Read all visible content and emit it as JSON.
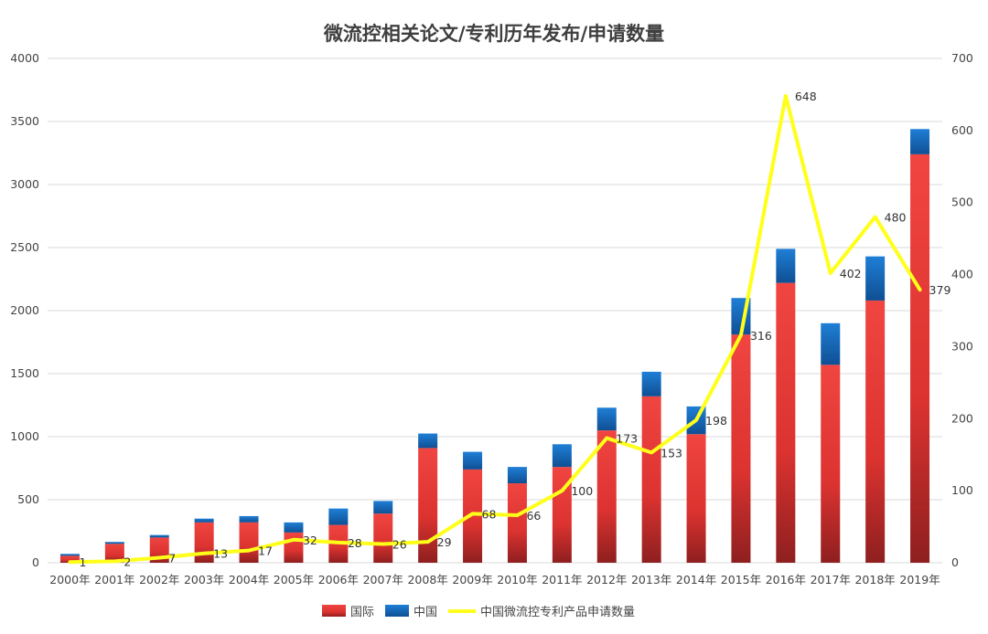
{
  "chart_data": {
    "type": "bar",
    "title": "微流控相关论文/专利历年发布/申请数量",
    "categories": [
      "2000年",
      "2001年",
      "2002年",
      "2003年",
      "2004年",
      "2005年",
      "2006年",
      "2007年",
      "2008年",
      "2009年",
      "2010年",
      "2011年",
      "2012年",
      "2013年",
      "2014年",
      "2015年",
      "2016年",
      "2017年",
      "2018年",
      "2019年"
    ],
    "series": [
      {
        "name": "国际",
        "type": "stacked-bar",
        "axis": "left",
        "color": "#e53a36",
        "values": [
          55,
          150,
          200,
          320,
          320,
          240,
          300,
          390,
          910,
          740,
          630,
          760,
          1050,
          1320,
          1020,
          1810,
          2220,
          1570,
          2080,
          3240
        ]
      },
      {
        "name": "中国",
        "type": "stacked-bar",
        "axis": "left",
        "color": "#1a70c2",
        "values": [
          15,
          15,
          20,
          30,
          50,
          80,
          130,
          100,
          115,
          140,
          130,
          180,
          180,
          195,
          220,
          290,
          270,
          330,
          350,
          200
        ]
      },
      {
        "name": "中国微流控专利产品申请数量",
        "type": "line",
        "axis": "right",
        "color": "#ffff1a",
        "values": [
          1,
          2,
          7,
          13,
          17,
          32,
          28,
          26,
          29,
          68,
          66,
          100,
          173,
          153,
          198,
          316,
          648,
          402,
          480,
          379
        ]
      }
    ],
    "y_left": {
      "min": 0,
      "max": 4000,
      "ticks": [
        0,
        500,
        1000,
        1500,
        2000,
        2500,
        3000,
        3500,
        4000
      ]
    },
    "y_right": {
      "min": 0,
      "max": 700,
      "ticks": [
        0,
        100,
        200,
        300,
        400,
        500,
        600,
        700
      ]
    },
    "grid": true,
    "legend_position": "bottom"
  }
}
